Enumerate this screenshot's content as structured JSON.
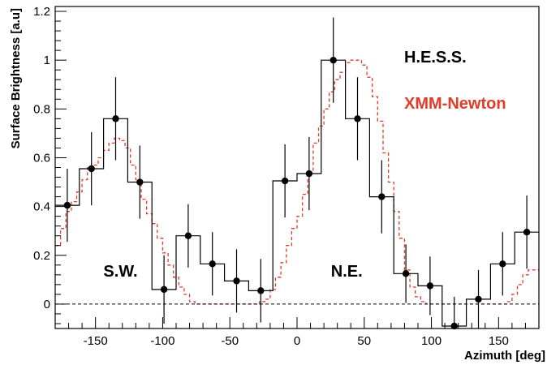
{
  "chart_data": {
    "type": "line",
    "xlabel": "Azimuth [deg]",
    "ylabel": "Surface Brightness [a.u]",
    "xlim": [
      -180,
      180
    ],
    "ylim": [
      -0.1,
      1.22
    ],
    "x_ticks": [
      -150,
      -100,
      -50,
      0,
      50,
      100,
      150
    ],
    "y_ticks": [
      0,
      0.2,
      0.4,
      0.6,
      0.8,
      1,
      1.2
    ],
    "grid": false,
    "zero_line": "dashed",
    "legend": [
      {
        "label": "H.E.S.S.",
        "color": "#000000"
      },
      {
        "label": "XMM-Newton",
        "color": "#e03c28"
      }
    ],
    "annotations": [
      {
        "text": "S.W.",
        "x": -135,
        "y": 0.12
      },
      {
        "text": "N.E.",
        "x": 37,
        "y": 0.12
      }
    ],
    "series": [
      {
        "name": "H.E.S.S.",
        "color": "#000000",
        "style": "step-with-error-bars",
        "bin_width": 18,
        "points": [
          {
            "x": -171,
            "y": 0.405,
            "err": 0.15
          },
          {
            "x": -153,
            "y": 0.555,
            "err": 0.15
          },
          {
            "x": -135,
            "y": 0.76,
            "err": 0.17
          },
          {
            "x": -117,
            "y": 0.5,
            "err": 0.15
          },
          {
            "x": -99,
            "y": 0.06,
            "err": 0.14
          },
          {
            "x": -81,
            "y": 0.28,
            "err": 0.13
          },
          {
            "x": -63,
            "y": 0.165,
            "err": 0.13
          },
          {
            "x": -45,
            "y": 0.095,
            "err": 0.13
          },
          {
            "x": -27,
            "y": 0.055,
            "err": 0.13
          },
          {
            "x": -9,
            "y": 0.505,
            "err": 0.15
          },
          {
            "x": 9,
            "y": 0.535,
            "err": 0.15
          },
          {
            "x": 27,
            "y": 1.0,
            "err": 0.175
          },
          {
            "x": 45,
            "y": 0.76,
            "err": 0.17
          },
          {
            "x": 63,
            "y": 0.44,
            "err": 0.15
          },
          {
            "x": 81,
            "y": 0.125,
            "err": 0.12
          },
          {
            "x": 99,
            "y": 0.075,
            "err": 0.12
          },
          {
            "x": 117,
            "y": -0.09,
            "err": 0.12
          },
          {
            "x": 135,
            "y": 0.02,
            "err": 0.12
          },
          {
            "x": 153,
            "y": 0.165,
            "err": 0.13
          },
          {
            "x": 171,
            "y": 0.295,
            "err": 0.15
          }
        ]
      },
      {
        "name": "XMM-Newton",
        "color": "#e03c28",
        "style": "dashed-step",
        "bin_width": 4,
        "x": [
          -178,
          -174,
          -170,
          -166,
          -162,
          -158,
          -154,
          -150,
          -146,
          -142,
          -138,
          -134,
          -130,
          -126,
          -122,
          -118,
          -114,
          -110,
          -106,
          -102,
          -98,
          -94,
          -90,
          -86,
          -82,
          -78,
          -74,
          -70,
          -66,
          -62,
          -58,
          -54,
          -50,
          -46,
          -42,
          -38,
          -34,
          -30,
          -26,
          -22,
          -18,
          -14,
          -10,
          -6,
          -2,
          2,
          6,
          10,
          14,
          18,
          22,
          26,
          30,
          34,
          38,
          42,
          46,
          50,
          54,
          58,
          62,
          66,
          70,
          74,
          78,
          82,
          86,
          90,
          94,
          98,
          102,
          106,
          110,
          114,
          118,
          122,
          126,
          130,
          134,
          138,
          142,
          146,
          150,
          154,
          158,
          162,
          166,
          170,
          174,
          178
        ],
        "y": [
          0.24,
          0.31,
          0.38,
          0.42,
          0.46,
          0.51,
          0.56,
          0.57,
          0.6,
          0.63,
          0.66,
          0.68,
          0.67,
          0.64,
          0.57,
          0.51,
          0.43,
          0.37,
          0.33,
          0.27,
          0.21,
          0.16,
          0.11,
          0.07,
          0.04,
          0.01,
          0,
          0,
          0,
          0,
          0,
          0,
          0,
          0,
          0,
          0,
          0,
          0,
          0.01,
          0.02,
          0.06,
          0.11,
          0.17,
          0.24,
          0.31,
          0.36,
          0.45,
          0.54,
          0.66,
          0.73,
          0.8,
          0.87,
          0.92,
          0.95,
          0.99,
          1.0,
          1.0,
          0.98,
          0.93,
          0.85,
          0.75,
          0.62,
          0.5,
          0.38,
          0.27,
          0.14,
          0.07,
          0.03,
          0.01,
          0,
          0,
          0,
          0,
          0,
          0,
          0,
          0,
          0,
          0,
          0,
          0,
          0,
          0,
          0,
          0.01,
          0.04,
          0.08,
          0.12,
          0.14,
          0.14
        ]
      }
    ]
  }
}
